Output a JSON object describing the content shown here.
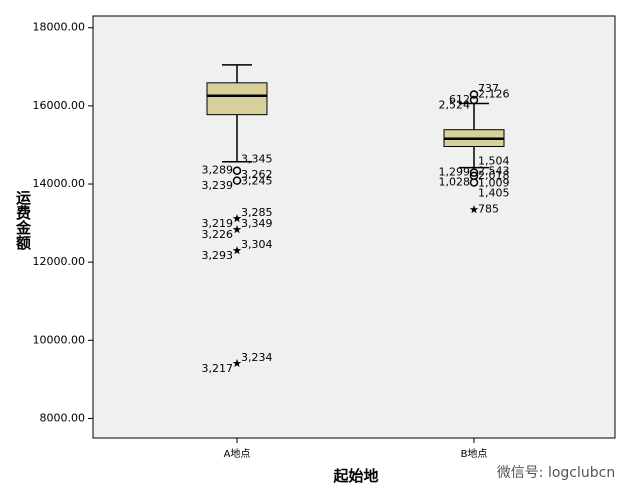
{
  "chart_data": {
    "type": "box",
    "x_label": "起始地",
    "y_label": "运费金额",
    "categories": [
      "A地点",
      "B地点"
    ],
    "color": "#d7d09a",
    "ylim": [
      7500,
      18300
    ],
    "yticks": [
      {
        "value": 8000,
        "label": "8000.00"
      },
      {
        "value": 10000,
        "label": "10000.00"
      },
      {
        "value": 12000,
        "label": "12000.00"
      },
      {
        "value": 14000,
        "label": "14000.00"
      },
      {
        "value": 16000,
        "label": "16000.00"
      },
      {
        "value": 18000,
        "label": "18000.00"
      }
    ],
    "boxes": [
      {
        "whisker_low": 14570,
        "q1": 15775,
        "median": 16260,
        "q3": 16590,
        "whisker_high": 17050,
        "outliers": [
          {
            "value": 14340,
            "marker": "circle",
            "labels": [
              "3,345",
              "3,289",
              "3,245"
            ]
          },
          {
            "value": 14087,
            "marker": "circle",
            "labels": [
              "3,262",
              "3,239"
            ]
          },
          {
            "value": 13115,
            "marker": "star",
            "labels": [
              "3,285",
              "3,219"
            ]
          },
          {
            "value": 12834,
            "marker": "star",
            "labels": [
              "3,349",
              "3,226"
            ]
          },
          {
            "value": 12297,
            "marker": "star",
            "labels": [
              "3,304",
              "3,293"
            ]
          },
          {
            "value": 9407,
            "marker": "star",
            "labels": [
              "3,234",
              "3,217"
            ]
          }
        ]
      },
      {
        "whisker_low": 14420,
        "q1": 14960,
        "median": 15160,
        "q3": 15390,
        "whisker_high": 16060,
        "outliers": [
          {
            "value": 16290,
            "marker": "circle",
            "labels": [
              "737",
              "612"
            ]
          },
          {
            "value": 16150,
            "marker": "circle",
            "labels": [
              "2,126",
              "2,524"
            ]
          },
          {
            "value": 14290,
            "marker": "circle",
            "labels": [
              "1,504",
              "1,299",
              "1,009"
            ]
          },
          {
            "value": 14210,
            "marker": "circle",
            "labels": [
              "2,018"
            ]
          },
          {
            "value": 14040,
            "marker": "circle",
            "labels": [
              "2,543",
              "1,028",
              "1,405"
            ]
          },
          {
            "value": 13345,
            "marker": "star",
            "labels": [
              "785"
            ]
          }
        ]
      }
    ],
    "watermark": "微信号: logclubcn"
  }
}
